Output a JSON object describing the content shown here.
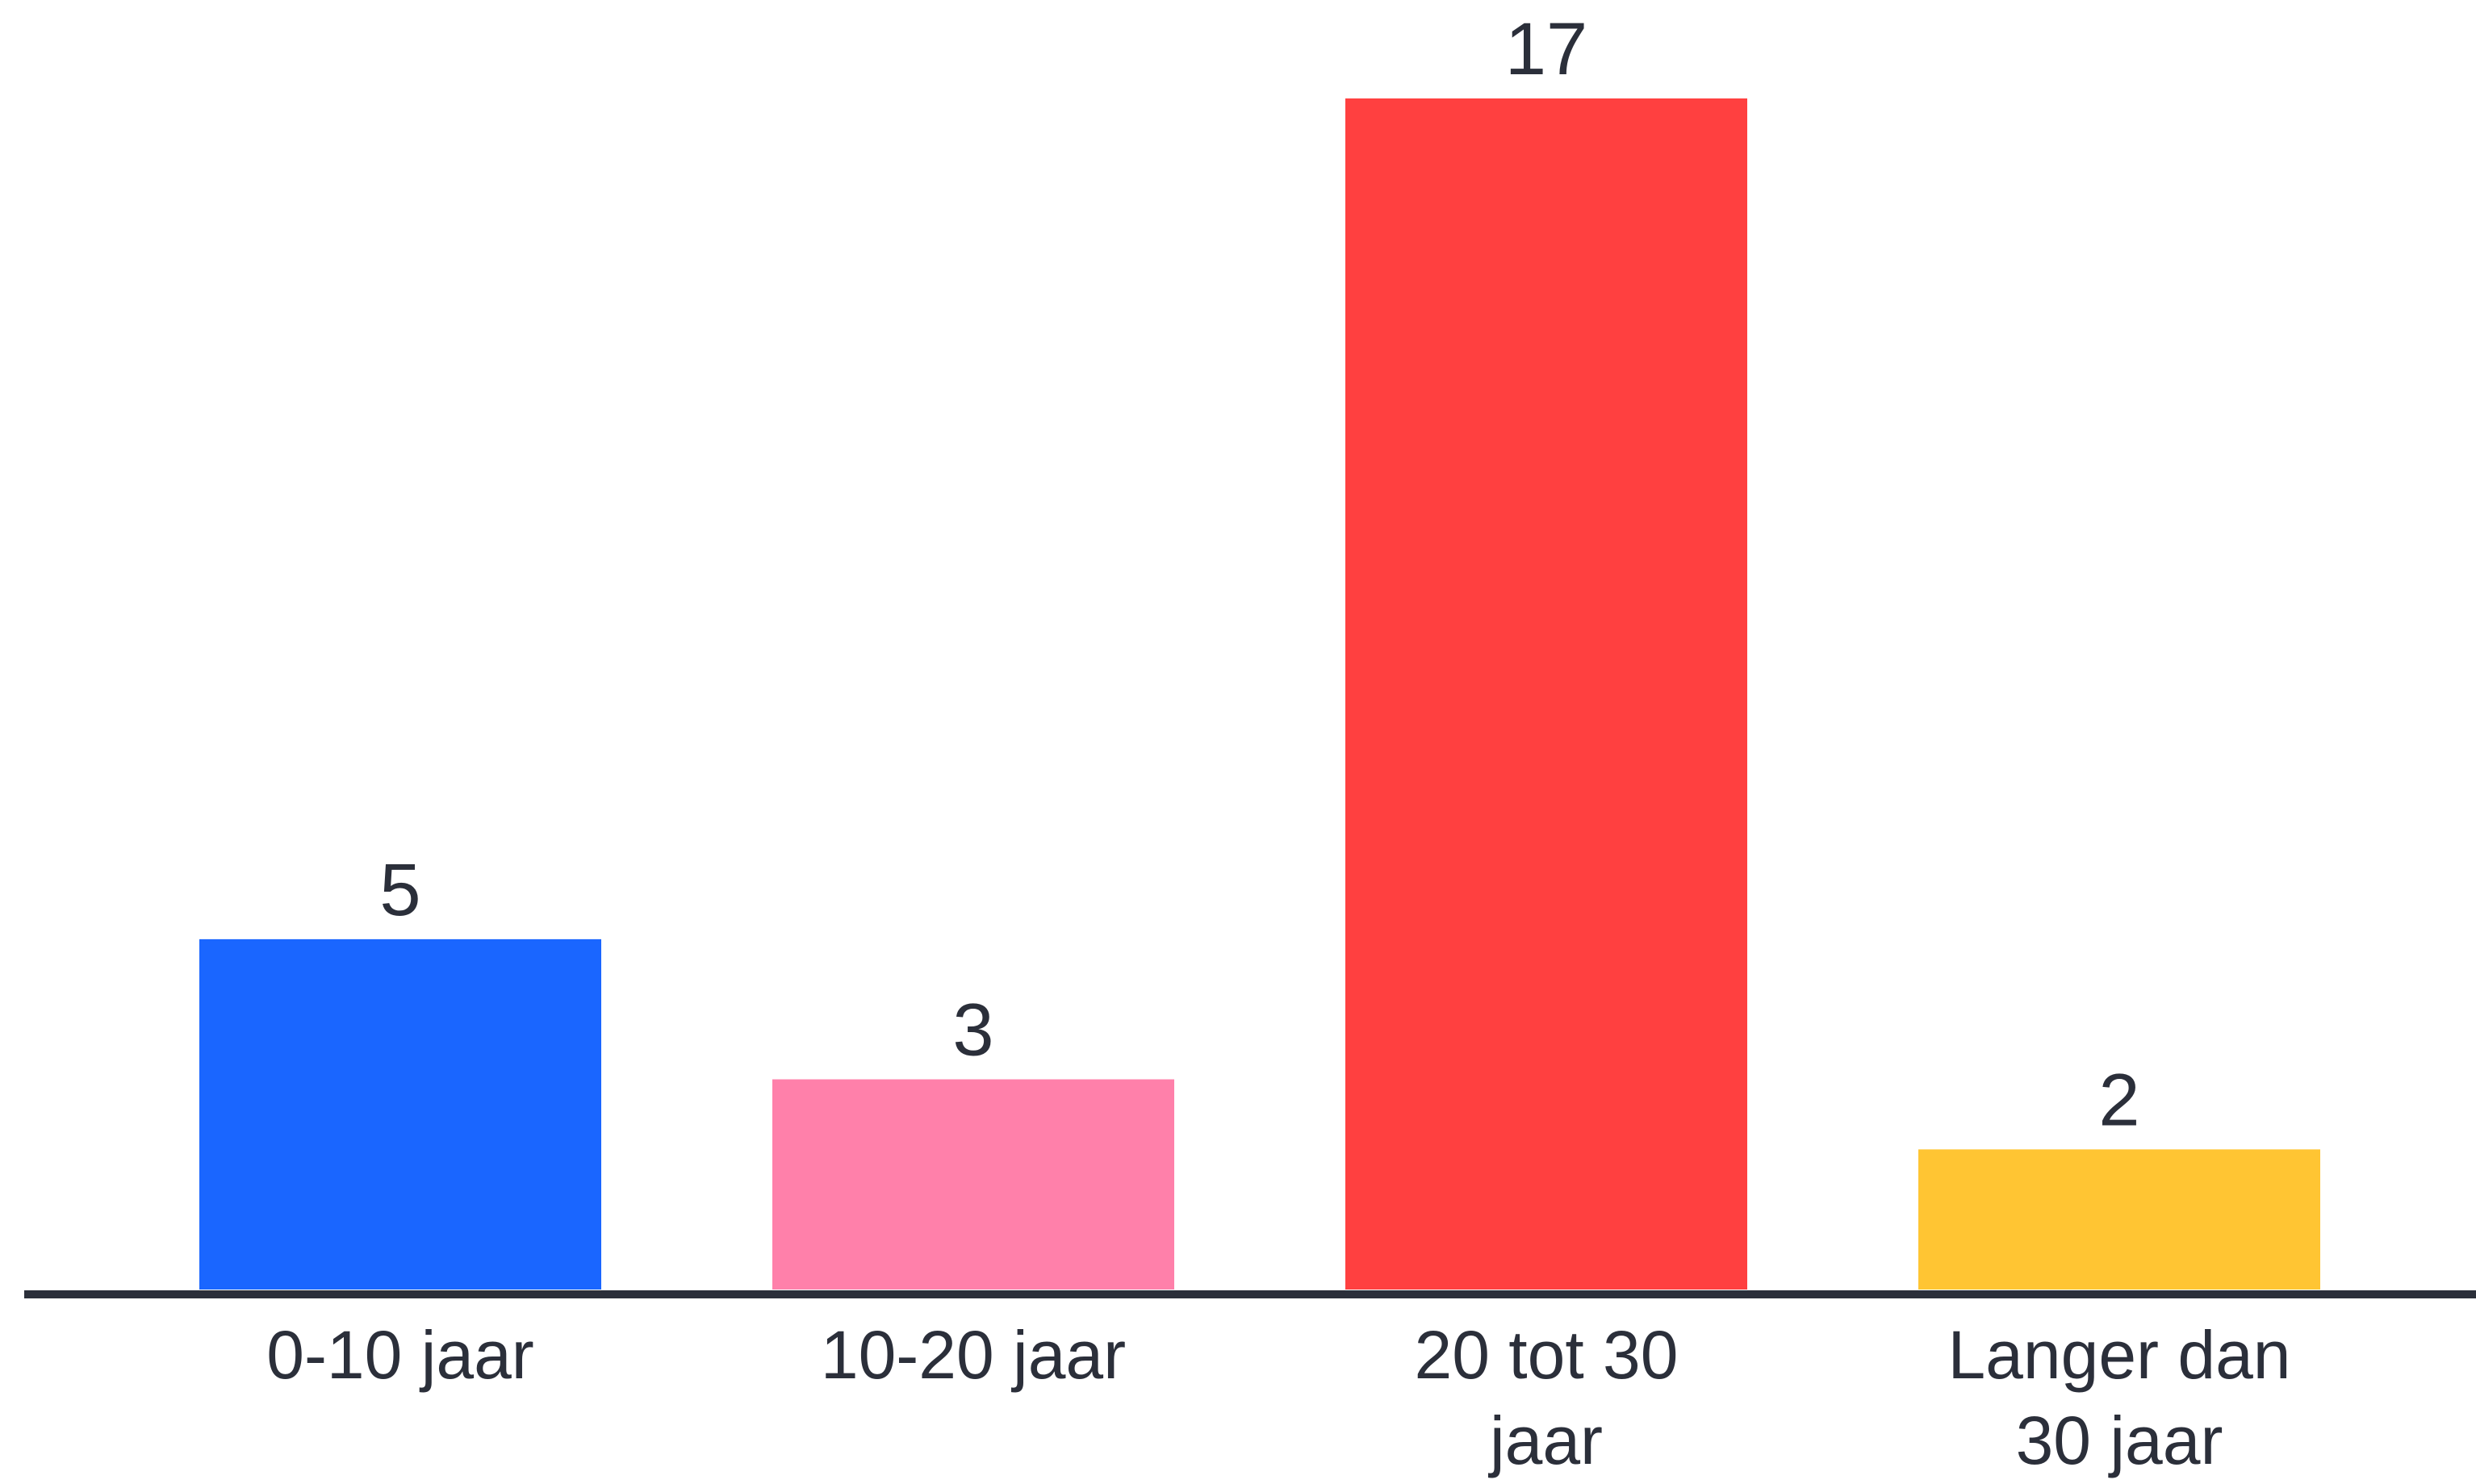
{
  "chart_data": {
    "type": "bar",
    "title": "",
    "xlabel": "",
    "ylabel": "",
    "categories": [
      "0-10 jaar",
      "10-20 jaar",
      "20 tot 30 jaar",
      "Langer dan 30 jaar"
    ],
    "category_lines": [
      [
        "0-10 jaar"
      ],
      [
        "10-20 jaar"
      ],
      [
        "20 tot 30",
        "jaar"
      ],
      [
        "Langer dan",
        "30 jaar"
      ]
    ],
    "values": [
      5,
      3,
      17,
      2
    ],
    "data_labels": [
      "5",
      "3",
      "17",
      "2"
    ],
    "colors": [
      "#1a66ff",
      "#ff80aa",
      "#ff4040",
      "#ffc533"
    ],
    "axis_color": "#2b2f3a",
    "ylim": [
      0,
      17
    ],
    "grid": false,
    "legend": "none"
  }
}
